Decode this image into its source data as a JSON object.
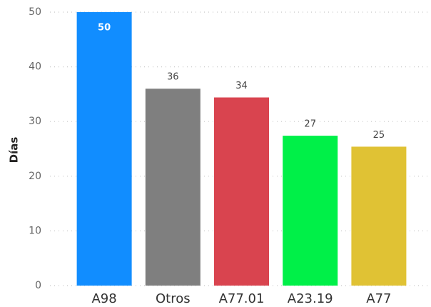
{
  "chart_data": {
    "type": "bar",
    "y_label": "Días",
    "categories": [
      "A98",
      "Otros",
      "A77.01",
      "A23.19",
      "A77"
    ],
    "values": [
      50,
      36,
      34.4,
      27.4,
      25.4
    ],
    "value_labels": [
      "50",
      "36",
      "34",
      "27",
      "25"
    ],
    "colors": [
      "#118dff",
      "#7f7f7f",
      "#d9444f",
      "#00f048",
      "#e0c234"
    ],
    "ylim": [
      0,
      50
    ],
    "yticks": [
      0,
      10,
      20,
      30,
      40,
      50
    ],
    "grid": true
  }
}
